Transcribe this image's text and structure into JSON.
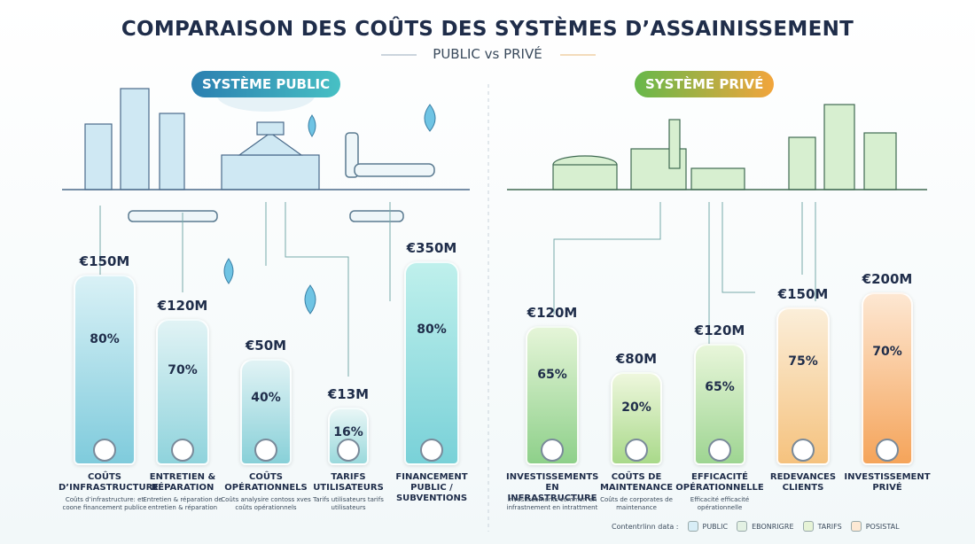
{
  "title": "COMPARAISON DES COÛTS DES SYSTÈMES D’ASSAINISSEMENT",
  "subtitle": "PUBLIC vs PRIVÉ",
  "panels": [
    {
      "title": "SYSTÈME PUBLIC",
      "items": [
        {
          "amount": "€150M",
          "percent": "80%",
          "label": "COÛTS D’INFRASTRUCTURE",
          "note": "Coûts d’infrastructure: et coone financement publice"
        },
        {
          "amount": "€120M",
          "percent": "70%",
          "label": "ENTRETIEN & RÉPARATION",
          "note": "Entretien & réparation de entretien & réparation"
        },
        {
          "amount": "€50M",
          "percent": "40%",
          "label": "COÛTS OPÉRATIONNELS",
          "note": "Coûts analysire contoss xves coûts opérationnels"
        },
        {
          "amount": "€13M",
          "percent": "16%",
          "label": "TARIFS UTILISATEURS",
          "note": "Tarifs utilisateurs tarifs utilisateurs"
        },
        {
          "amount": "€350M",
          "percent": "80%",
          "label": "FINANCEMENT PUBLIC / SUBVENTIONS"
        }
      ]
    },
    {
      "title": "SYSTÈME PRIVÉ",
      "items": [
        {
          "amount": "€120M",
          "percent": "65%",
          "label": "INVESTISSEMENTS EN INFRASTRUCTURE",
          "note": "Investissements commen en infrastnement en intrattment"
        },
        {
          "amount": "€80M",
          "percent": "20%",
          "label": "COÛTS DE MAINTENANCE",
          "note": "Coûts de corporates de maintenance"
        },
        {
          "amount": "€120M",
          "percent": "65%",
          "label": "EFFICACITÉ OPÉRATIONNELLE",
          "note": "Efficacité efficacité opérationnelle"
        },
        {
          "amount": "€150M",
          "percent": "75%",
          "label": "REDEVANCES CLIENTS"
        },
        {
          "amount": "€200M",
          "percent": "70%",
          "label": "INVESTISSEMENT PRIVÉ"
        }
      ]
    }
  ],
  "legend": {
    "title": "Contentrlinn data :",
    "items": [
      "PUBLIC",
      "EBONRIGRE",
      "TARIFS",
      "POSISTAL"
    ]
  }
}
